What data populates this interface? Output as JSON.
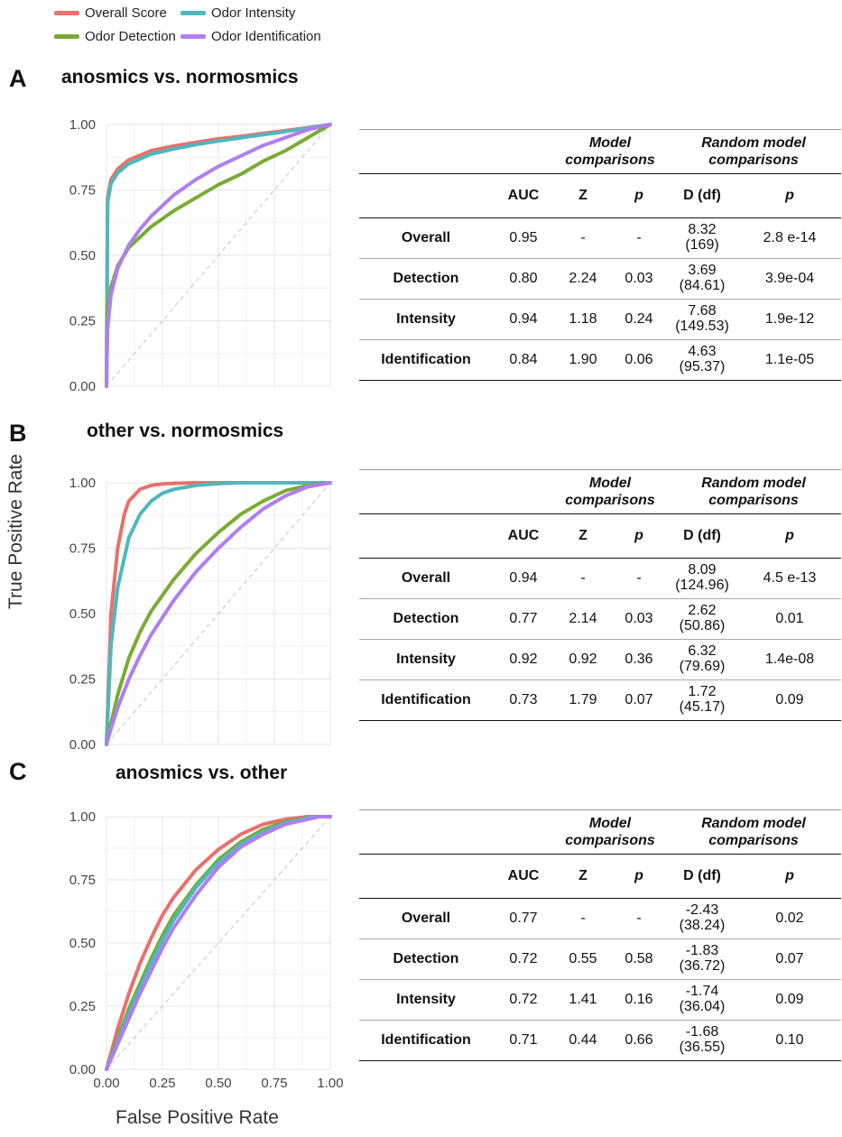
{
  "colors": {
    "overall": "#e8716b",
    "intensity": "#4fb7bd",
    "detection": "#7aab35",
    "identification": "#b07ef0"
  },
  "legend": [
    "Overall Score",
    "Odor Intensity",
    "Odor Detection",
    "Odor Identification"
  ],
  "axes": {
    "xlabel": "False Positive Rate",
    "ylabel": "True Positive Rate"
  },
  "table_headers": {
    "model_comparisons": "Model comparisons",
    "random_model_comparisons": "Random model comparisons",
    "auc": "AUC",
    "z": "Z",
    "p": "p",
    "d_df": "D (df)"
  },
  "chart_data": [
    {
      "type": "line",
      "panel": "A",
      "title": "anosmics vs. normosmics",
      "xlabel": "",
      "ylabel": "",
      "xlim": [
        0,
        1
      ],
      "ylim": [
        0,
        1
      ],
      "x_ticks": [],
      "y_ticks": [
        "0.00",
        "0.25",
        "0.50",
        "0.75",
        "1.00"
      ],
      "diagonal": true,
      "grid": true,
      "series": [
        {
          "name": "Overall Score",
          "color_key": "overall",
          "x": [
            0,
            0.005,
            0.02,
            0.05,
            0.1,
            0.2,
            0.3,
            0.4,
            0.5,
            0.6,
            0.7,
            0.8,
            0.9,
            1.0
          ],
          "y": [
            0,
            0.72,
            0.79,
            0.83,
            0.865,
            0.9,
            0.918,
            0.932,
            0.945,
            0.955,
            0.966,
            0.977,
            0.988,
            1
          ]
        },
        {
          "name": "Odor Intensity",
          "color_key": "intensity",
          "x": [
            0,
            0.005,
            0.02,
            0.05,
            0.1,
            0.2,
            0.3,
            0.4,
            0.5,
            0.6,
            0.7,
            0.8,
            0.9,
            1.0
          ],
          "y": [
            0,
            0.7,
            0.775,
            0.815,
            0.85,
            0.887,
            0.907,
            0.923,
            0.937,
            0.949,
            0.961,
            0.973,
            0.986,
            1
          ]
        },
        {
          "name": "Odor Detection",
          "color_key": "detection",
          "x": [
            0,
            0.005,
            0.02,
            0.05,
            0.1,
            0.15,
            0.2,
            0.3,
            0.4,
            0.5,
            0.6,
            0.7,
            0.8,
            0.9,
            1.0
          ],
          "y": [
            0,
            0.3,
            0.38,
            0.46,
            0.53,
            0.57,
            0.61,
            0.67,
            0.72,
            0.77,
            0.81,
            0.86,
            0.9,
            0.95,
            1
          ]
        },
        {
          "name": "Odor Identification",
          "color_key": "identification",
          "x": [
            0,
            0.005,
            0.02,
            0.05,
            0.1,
            0.15,
            0.2,
            0.3,
            0.4,
            0.5,
            0.6,
            0.7,
            0.8,
            0.9,
            1.0
          ],
          "y": [
            0,
            0.22,
            0.35,
            0.45,
            0.54,
            0.6,
            0.65,
            0.73,
            0.79,
            0.84,
            0.88,
            0.92,
            0.95,
            0.98,
            1
          ]
        }
      ]
    },
    {
      "type": "line",
      "panel": "B",
      "title": "other vs. normosmics",
      "xlabel": "",
      "ylabel": "True Positive Rate",
      "xlim": [
        0,
        1
      ],
      "ylim": [
        0,
        1
      ],
      "x_ticks": [],
      "y_ticks": [
        "0.00",
        "0.25",
        "0.50",
        "0.75",
        "1.00"
      ],
      "diagonal": true,
      "grid": true,
      "series": [
        {
          "name": "Overall Score",
          "color_key": "overall",
          "x": [
            0,
            0.02,
            0.05,
            0.08,
            0.1,
            0.15,
            0.2,
            0.25,
            0.3,
            0.4,
            0.5,
            0.6,
            0.7,
            0.8,
            0.9,
            1.0
          ],
          "y": [
            0,
            0.5,
            0.75,
            0.88,
            0.93,
            0.975,
            0.99,
            0.996,
            0.998,
            1,
            1,
            1,
            1,
            1,
            1,
            1
          ]
        },
        {
          "name": "Odor Intensity",
          "color_key": "intensity",
          "x": [
            0,
            0.02,
            0.05,
            0.1,
            0.15,
            0.2,
            0.25,
            0.3,
            0.4,
            0.5,
            0.6,
            0.7,
            0.8,
            0.9,
            1.0
          ],
          "y": [
            0,
            0.38,
            0.6,
            0.79,
            0.88,
            0.93,
            0.96,
            0.975,
            0.99,
            0.997,
            1,
            1,
            1,
            1,
            1
          ]
        },
        {
          "name": "Odor Detection",
          "color_key": "detection",
          "x": [
            0,
            0.02,
            0.05,
            0.1,
            0.15,
            0.2,
            0.3,
            0.4,
            0.5,
            0.6,
            0.7,
            0.8,
            0.9,
            1.0
          ],
          "y": [
            0,
            0.08,
            0.19,
            0.33,
            0.43,
            0.51,
            0.63,
            0.73,
            0.81,
            0.88,
            0.93,
            0.97,
            0.99,
            1
          ]
        },
        {
          "name": "Odor Identification",
          "color_key": "identification",
          "x": [
            0,
            0.02,
            0.05,
            0.1,
            0.15,
            0.2,
            0.3,
            0.4,
            0.5,
            0.6,
            0.7,
            0.8,
            0.9,
            1.0
          ],
          "y": [
            0,
            0.06,
            0.14,
            0.25,
            0.34,
            0.42,
            0.55,
            0.66,
            0.75,
            0.83,
            0.9,
            0.95,
            0.985,
            1
          ]
        }
      ]
    },
    {
      "type": "line",
      "panel": "C",
      "title": "anosmics vs. other",
      "xlabel": "False Positive Rate",
      "ylabel": "",
      "xlim": [
        0,
        1
      ],
      "ylim": [
        0,
        1
      ],
      "x_ticks": [
        "0.00",
        "0.25",
        "0.50",
        "0.75",
        "1.00"
      ],
      "y_ticks": [
        "0.00",
        "0.25",
        "0.50",
        "0.75",
        "1.00"
      ],
      "diagonal": true,
      "grid": true,
      "series": [
        {
          "name": "Overall Score",
          "color_key": "overall",
          "x": [
            0,
            0.05,
            0.1,
            0.15,
            0.2,
            0.25,
            0.3,
            0.4,
            0.5,
            0.6,
            0.7,
            0.8,
            0.9,
            0.95,
            1.0
          ],
          "y": [
            0,
            0.16,
            0.3,
            0.42,
            0.52,
            0.61,
            0.68,
            0.79,
            0.87,
            0.93,
            0.97,
            0.99,
            1,
            1,
            1
          ]
        },
        {
          "name": "Odor Detection",
          "color_key": "detection",
          "x": [
            0,
            0.05,
            0.1,
            0.15,
            0.2,
            0.25,
            0.3,
            0.4,
            0.5,
            0.6,
            0.7,
            0.8,
            0.9,
            0.95,
            1.0
          ],
          "y": [
            0,
            0.12,
            0.24,
            0.34,
            0.44,
            0.53,
            0.61,
            0.73,
            0.83,
            0.9,
            0.95,
            0.98,
            0.995,
            1,
            1
          ]
        },
        {
          "name": "Odor Intensity",
          "color_key": "intensity",
          "x": [
            0,
            0.05,
            0.1,
            0.15,
            0.2,
            0.25,
            0.3,
            0.4,
            0.5,
            0.6,
            0.7,
            0.8,
            0.9,
            0.95,
            1.0
          ],
          "y": [
            0,
            0.11,
            0.22,
            0.32,
            0.42,
            0.51,
            0.59,
            0.72,
            0.82,
            0.89,
            0.94,
            0.975,
            0.995,
            1,
            1
          ]
        },
        {
          "name": "Odor Identification",
          "color_key": "identification",
          "x": [
            0,
            0.05,
            0.1,
            0.15,
            0.2,
            0.25,
            0.3,
            0.4,
            0.5,
            0.6,
            0.7,
            0.8,
            0.9,
            0.95,
            1.0
          ],
          "y": [
            0,
            0.1,
            0.2,
            0.3,
            0.39,
            0.48,
            0.56,
            0.69,
            0.8,
            0.88,
            0.93,
            0.97,
            0.99,
            1,
            1
          ]
        }
      ]
    },
    {
      "type": "table",
      "panel": "A",
      "columns": [
        "",
        "AUC",
        "Z",
        "p",
        "D (df)",
        "p"
      ],
      "rows": [
        {
          "label": "Overall",
          "auc": "0.95",
          "z": "-",
          "p": "-",
          "d": "8.32",
          "df": "(169)",
          "rp": "2.8 e-14"
        },
        {
          "label": "Detection",
          "auc": "0.80",
          "z": "2.24",
          "p": "0.03",
          "d": "3.69",
          "df": "(84.61)",
          "rp": "3.9e-04"
        },
        {
          "label": "Intensity",
          "auc": "0.94",
          "z": "1.18",
          "p": "0.24",
          "d": "7.68",
          "df": "(149.53)",
          "rp": "1.9e-12"
        },
        {
          "label": "Identification",
          "auc": "0.84",
          "z": "1.90",
          "p": "0.06",
          "d": "4.63",
          "df": "(95.37)",
          "rp": "1.1e-05"
        }
      ]
    },
    {
      "type": "table",
      "panel": "B",
      "columns": [
        "",
        "AUC",
        "Z",
        "p",
        "D (df)",
        "p"
      ],
      "rows": [
        {
          "label": "Overall",
          "auc": "0.94",
          "z": "-",
          "p": "-",
          "d": "8.09",
          "df": "(124.96)",
          "rp": "4.5 e-13"
        },
        {
          "label": "Detection",
          "auc": "0.77",
          "z": "2.14",
          "p": "0.03",
          "d": "2.62",
          "df": "(50.86)",
          "rp": "0.01"
        },
        {
          "label": "Intensity",
          "auc": "0.92",
          "z": "0.92",
          "p": "0.36",
          "d": "6.32",
          "df": "(79.69)",
          "rp": "1.4e-08"
        },
        {
          "label": "Identification",
          "auc": "0.73",
          "z": "1.79",
          "p": "0.07",
          "d": "1.72",
          "df": "(45.17)",
          "rp": "0.09"
        }
      ]
    },
    {
      "type": "table",
      "panel": "C",
      "columns": [
        "",
        "AUC",
        "Z",
        "p",
        "D (df)",
        "p"
      ],
      "rows": [
        {
          "label": "Overall",
          "auc": "0.77",
          "z": "-",
          "p": "-",
          "d": "-2.43",
          "df": "(38.24)",
          "rp": "0.02"
        },
        {
          "label": "Detection",
          "auc": "0.72",
          "z": "0.55",
          "p": "0.58",
          "d": "-1.83",
          "df": "(36.72)",
          "rp": "0.07"
        },
        {
          "label": "Intensity",
          "auc": "0.72",
          "z": "1.41",
          "p": "0.16",
          "d": "-1.74",
          "df": "(36.04)",
          "rp": "0.09"
        },
        {
          "label": "Identification",
          "auc": "0.71",
          "z": "0.44",
          "p": "0.66",
          "d": "-1.68",
          "df": "(36.55)",
          "rp": "0.10"
        }
      ]
    }
  ]
}
